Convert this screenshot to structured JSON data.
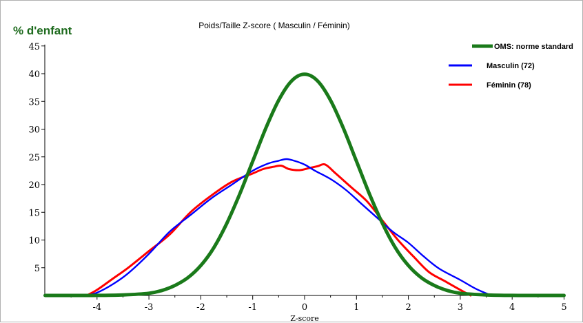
{
  "chart_data": {
    "type": "line",
    "title": "Poids/Taille Z-score ( Masculin / Féminin)",
    "ylabel": "% d'enfant",
    "xlabel": "Z-score",
    "xlim": [
      -5,
      5
    ],
    "ylim": [
      0,
      45
    ],
    "x_ticks": [
      "-4",
      "-3",
      "-2",
      "-1",
      "0",
      "1",
      "2",
      "3",
      "4",
      "5"
    ],
    "y_ticks": [
      "5",
      "10",
      "15",
      "20",
      "25",
      "30",
      "35",
      "40",
      "45"
    ],
    "grid": false,
    "legend_position": "top-right",
    "series": [
      {
        "name": "OMS: norme standard",
        "color": "#1a7a1a",
        "x": [
          -5,
          -4.5,
          -4,
          -3.5,
          -3,
          -2.75,
          -2.5,
          -2.25,
          -2,
          -1.75,
          -1.5,
          -1.25,
          -1,
          -0.75,
          -0.5,
          -0.25,
          0,
          0.25,
          0.5,
          0.75,
          1,
          1.25,
          1.5,
          1.75,
          2,
          2.25,
          2.5,
          2.75,
          3,
          3.5,
          4,
          4.5,
          5
        ],
        "y": [
          0,
          0,
          0.01,
          0.1,
          0.4,
          0.9,
          1.8,
          3.2,
          5.4,
          8.6,
          13.0,
          18.3,
          24.2,
          30.1,
          35.2,
          38.7,
          39.9,
          38.7,
          35.2,
          30.1,
          24.2,
          18.3,
          13.0,
          8.6,
          5.4,
          3.2,
          1.8,
          0.9,
          0.4,
          0.1,
          0.01,
          0,
          0
        ]
      },
      {
        "name": "Masculin (72)",
        "color": "#0000ff",
        "x": [
          -4.2,
          -4,
          -3.7,
          -3.4,
          -3,
          -2.6,
          -2.2,
          -1.8,
          -1.4,
          -1.0,
          -0.7,
          -0.5,
          -0.35,
          -0.2,
          0,
          0.2,
          0.5,
          0.8,
          1.1,
          1.4,
          1.7,
          2.0,
          2.3,
          2.6,
          3.0,
          3.3,
          3.6
        ],
        "y": [
          0,
          0.5,
          2.0,
          4.0,
          7.5,
          11.5,
          14.5,
          17.5,
          20.0,
          22.5,
          23.8,
          24.3,
          24.6,
          24.3,
          23.6,
          22.5,
          21.0,
          19.0,
          16.5,
          14.0,
          11.5,
          9.5,
          7.0,
          4.8,
          2.8,
          1.2,
          0
        ]
      },
      {
        "name": "Féminin  (78)",
        "color": "#ff0000",
        "x": [
          -4.2,
          -4,
          -3.7,
          -3.4,
          -3,
          -2.6,
          -2.2,
          -1.8,
          -1.4,
          -1.0,
          -0.8,
          -0.6,
          -0.45,
          -0.3,
          -0.1,
          0.1,
          0.25,
          0.4,
          0.6,
          0.9,
          1.2,
          1.5,
          1.8,
          2.1,
          2.4,
          2.7,
          3.0,
          3.2
        ],
        "y": [
          0,
          1.0,
          3.0,
          5.0,
          8.0,
          11.0,
          15.0,
          18.0,
          20.5,
          22.0,
          22.8,
          23.2,
          23.4,
          22.8,
          22.6,
          23.0,
          23.3,
          23.6,
          22.0,
          19.5,
          17.0,
          13.5,
          10.0,
          7.0,
          4.2,
          2.6,
          1.0,
          0
        ]
      }
    ]
  }
}
